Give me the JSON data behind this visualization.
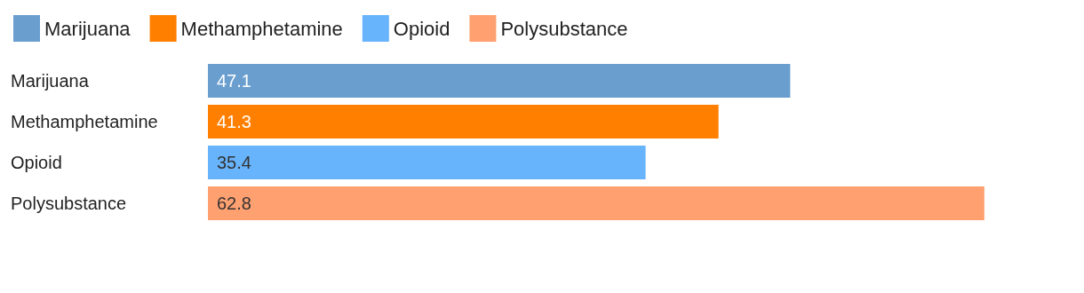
{
  "chart_data": {
    "type": "bar",
    "orientation": "horizontal",
    "stacked": true,
    "data_labels": true,
    "legend": "top left",
    "categories": [
      "Marijuana",
      "Methamphetamine",
      "Opioid",
      "Polysubstance"
    ],
    "series": [
      {
        "name": "Marijuana",
        "color": "#699ecf",
        "values": [
          47.1,
          null,
          null,
          null
        ]
      },
      {
        "name": "Methamphetamine",
        "color": "#ff7f00",
        "values": [
          null,
          41.3,
          null,
          null
        ]
      },
      {
        "name": "Opioid",
        "color": "#67b4fc",
        "values": [
          null,
          null,
          35.4,
          null
        ]
      },
      {
        "name": "Polysubstance",
        "color": "#ffa070",
        "values": [
          null,
          null,
          null,
          62.8
        ]
      }
    ]
  }
}
